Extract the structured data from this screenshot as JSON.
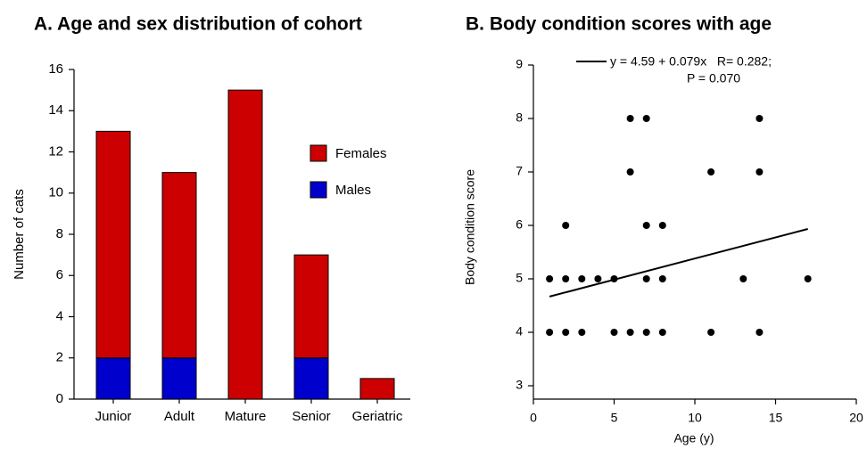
{
  "chart_data": [
    {
      "type": "bar",
      "title": "A. Age and sex distribution of cohort",
      "y_label": "Number of cats",
      "categories": [
        "Junior",
        "Adult",
        "Mature",
        "Senior",
        "Geriatric"
      ],
      "series": [
        {
          "name": "Males",
          "color": "#0000cc",
          "values": [
            2,
            2,
            0,
            2,
            0
          ]
        },
        {
          "name": "Females",
          "color": "#cc0000",
          "values": [
            11,
            9,
            15,
            5,
            1
          ]
        }
      ],
      "ylim": [
        0,
        16
      ],
      "yticks": [
        0,
        2,
        4,
        6,
        8,
        10,
        12,
        14,
        16
      ],
      "stacked": true
    },
    {
      "type": "scatter",
      "title": "B. Body condition scores with age",
      "x_label": "Age (y)",
      "y_label": "Body condition score",
      "points": {
        "color": "#000000",
        "x": [
          1,
          2,
          3,
          5,
          6,
          7,
          8,
          11,
          14,
          1,
          2,
          3,
          4,
          5,
          7,
          8,
          13,
          17,
          2,
          7,
          8,
          6,
          11,
          14,
          6,
          7,
          14
        ],
        "values": [
          4,
          4,
          4,
          4,
          4,
          4,
          4,
          4,
          4,
          5,
          5,
          5,
          5,
          5,
          5,
          5,
          5,
          5,
          6,
          6,
          6,
          7,
          7,
          7,
          8,
          8,
          8
        ]
      },
      "trendline": {
        "name": "y = 4.59 + 0.079x   R= 0.282;",
        "color": "#000000",
        "x": [
          1,
          17
        ],
        "values": [
          4.669,
          5.933
        ]
      },
      "annotation": "P = 0.070",
      "xlim": [
        0,
        20
      ],
      "xticks": [
        0,
        5,
        10,
        15,
        20
      ],
      "ylim": [
        2.75,
        9
      ],
      "yticks": [
        3,
        4,
        5,
        6,
        7,
        8,
        9
      ]
    }
  ]
}
